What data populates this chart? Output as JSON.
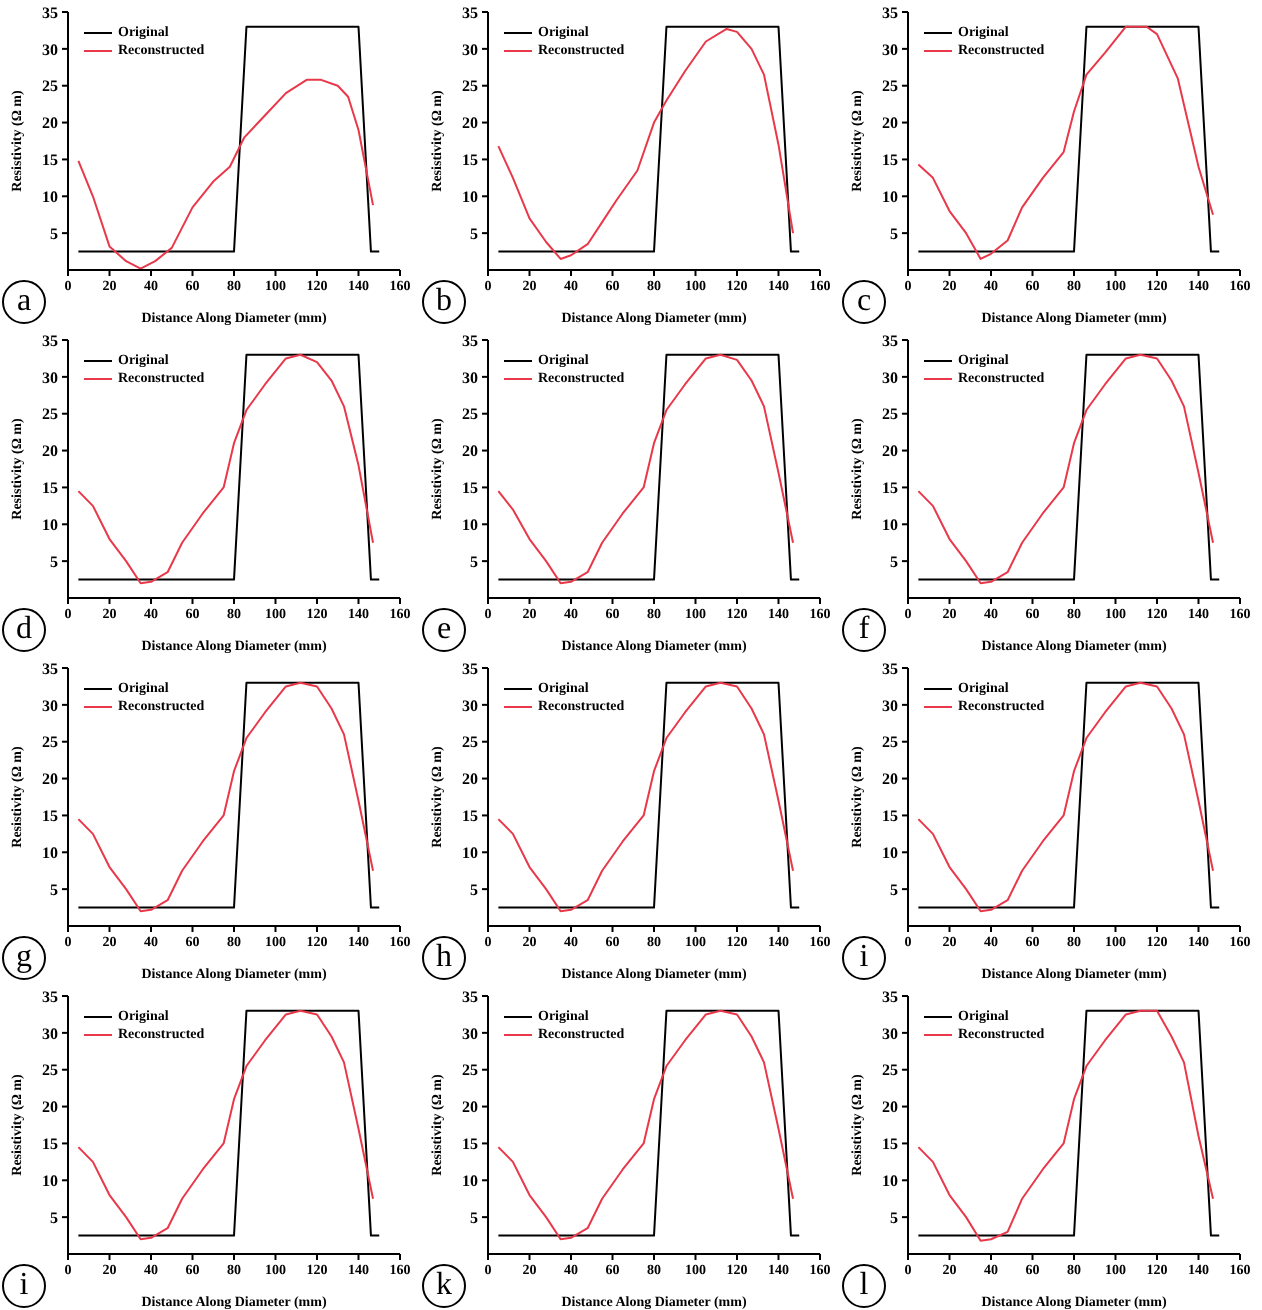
{
  "chart_data": [
    {
      "type": "line",
      "xlabel": "Distance Along Diameter (mm)",
      "ylabel": "Resistivity (Ω m)",
      "xlim": [
        0,
        160
      ],
      "ylim": [
        0,
        35
      ],
      "xticks": [
        0,
        20,
        40,
        60,
        80,
        100,
        120,
        140,
        160
      ],
      "yticks": [
        5,
        10,
        15,
        20,
        25,
        30,
        35
      ],
      "legend": "top left",
      "marker": "none",
      "line_style": "solid",
      "annotations": [
        "a"
      ],
      "series": [
        {
          "name": "Original",
          "color": "#000000",
          "x": [
            5,
            80,
            86,
            140,
            146,
            150
          ],
          "values": [
            2.5,
            2.5,
            33,
            33,
            2.5,
            2.5
          ]
        },
        {
          "name": "Reconstructed",
          "color": "#e8384a",
          "x": [
            5,
            12,
            20,
            28,
            35,
            42,
            50,
            60,
            70,
            78,
            85,
            95,
            105,
            115,
            122,
            130,
            135,
            140,
            147
          ],
          "values": [
            14.8,
            10,
            3.2,
            1.2,
            0.2,
            1.2,
            3,
            8.5,
            12,
            14,
            18,
            21,
            24,
            25.8,
            25.8,
            25,
            23.5,
            19,
            8.8
          ]
        }
      ]
    },
    {
      "type": "line",
      "xlabel": "Distance Along Diameter (mm)",
      "ylabel": "Resistivity (Ω m)",
      "xlim": [
        0,
        160
      ],
      "ylim": [
        0,
        35
      ],
      "xticks": [
        0,
        20,
        40,
        60,
        80,
        100,
        120,
        140,
        160
      ],
      "yticks": [
        5,
        10,
        15,
        20,
        25,
        30,
        35
      ],
      "legend": "top left",
      "marker": "none",
      "line_style": "solid",
      "annotations": [
        "b"
      ],
      "series": [
        {
          "name": "Original",
          "color": "#000000",
          "x": [
            5,
            80,
            86,
            140,
            146,
            150
          ],
          "values": [
            2.5,
            2.5,
            33,
            33,
            2.5,
            2.5
          ]
        },
        {
          "name": "Reconstructed",
          "color": "#e8384a",
          "x": [
            5,
            12,
            20,
            28,
            35,
            40,
            48,
            55,
            62,
            72,
            80,
            86,
            95,
            105,
            115,
            120,
            127,
            133,
            140,
            147
          ],
          "values": [
            16.8,
            12.5,
            7,
            3.8,
            1.5,
            2,
            3.5,
            6.5,
            9.5,
            13.5,
            20,
            23,
            27,
            31,
            32.7,
            32.3,
            30,
            26.5,
            17,
            5
          ]
        }
      ]
    },
    {
      "type": "line",
      "xlabel": "Distance Along Diameter (mm)",
      "ylabel": "Resistivity (Ω m)",
      "xlim": [
        0,
        160
      ],
      "ylim": [
        0,
        35
      ],
      "xticks": [
        0,
        20,
        40,
        60,
        80,
        100,
        120,
        140,
        160
      ],
      "yticks": [
        5,
        10,
        15,
        20,
        25,
        30,
        35
      ],
      "legend": "top left",
      "marker": "none",
      "line_style": "solid",
      "annotations": [
        "c"
      ],
      "series": [
        {
          "name": "Original",
          "color": "#000000",
          "x": [
            5,
            80,
            86,
            140,
            146,
            150
          ],
          "values": [
            2.5,
            2.5,
            33,
            33,
            2.5,
            2.5
          ]
        },
        {
          "name": "Reconstructed",
          "color": "#e8384a",
          "x": [
            5,
            12,
            20,
            28,
            35,
            40,
            48,
            55,
            65,
            75,
            80,
            86,
            95,
            105,
            115,
            120,
            130,
            140,
            147
          ],
          "values": [
            14.3,
            12.5,
            8,
            5,
            1.5,
            2.2,
            4,
            8.5,
            12.5,
            16,
            21.5,
            26.5,
            29.5,
            33,
            33,
            32,
            26,
            14,
            7.5
          ]
        }
      ]
    },
    {
      "type": "line",
      "xlabel": "Distance Along Diameter (mm)",
      "ylabel": "Resistivity (Ω m)",
      "xlim": [
        0,
        160
      ],
      "ylim": [
        0,
        35
      ],
      "xticks": [
        0,
        20,
        40,
        60,
        80,
        100,
        120,
        140,
        160
      ],
      "yticks": [
        5,
        10,
        15,
        20,
        25,
        30,
        35
      ],
      "legend": "top left",
      "marker": "none",
      "line_style": "solid",
      "annotations": [
        "d"
      ],
      "series": [
        {
          "name": "Original",
          "color": "#000000",
          "x": [
            5,
            80,
            86,
            140,
            146,
            150
          ],
          "values": [
            2.5,
            2.5,
            33,
            33,
            2.5,
            2.5
          ]
        },
        {
          "name": "Reconstructed",
          "color": "#e8384a",
          "x": [
            5,
            12,
            20,
            28,
            35,
            40,
            48,
            55,
            65,
            75,
            80,
            86,
            95,
            105,
            112,
            120,
            127,
            133,
            140,
            147
          ],
          "values": [
            14.5,
            12.5,
            8,
            5,
            2,
            2.2,
            3.5,
            7.5,
            11.5,
            15,
            21,
            25.5,
            29,
            32.5,
            33,
            32,
            29.5,
            26,
            18,
            7.5
          ]
        }
      ]
    },
    {
      "type": "line",
      "xlabel": "Distance Along Diameter (mm)",
      "ylabel": "Resistivity (Ω m)",
      "xlim": [
        0,
        160
      ],
      "ylim": [
        0,
        35
      ],
      "xticks": [
        0,
        20,
        40,
        60,
        80,
        100,
        120,
        140,
        160
      ],
      "yticks": [
        5,
        10,
        15,
        20,
        25,
        30,
        35
      ],
      "legend": "top left",
      "marker": "none",
      "line_style": "solid",
      "annotations": [
        "e"
      ],
      "series": [
        {
          "name": "Original",
          "color": "#000000",
          "x": [
            5,
            80,
            86,
            140,
            146,
            150
          ],
          "values": [
            2.5,
            2.5,
            33,
            33,
            2.5,
            2.5
          ]
        },
        {
          "name": "Reconstructed",
          "color": "#e8384a",
          "x": [
            5,
            12,
            20,
            28,
            35,
            40,
            48,
            55,
            65,
            75,
            80,
            86,
            95,
            105,
            112,
            120,
            127,
            133,
            140,
            147
          ],
          "values": [
            14.5,
            12,
            8,
            5,
            2,
            2.2,
            3.5,
            7.5,
            11.5,
            15,
            21,
            25.5,
            29,
            32.5,
            33,
            32.3,
            29.5,
            26,
            17,
            7.5
          ]
        }
      ]
    },
    {
      "type": "line",
      "xlabel": "Distance Along Diameter (mm)",
      "ylabel": "Resistivity (Ω m)",
      "xlim": [
        0,
        160
      ],
      "ylim": [
        0,
        35
      ],
      "xticks": [
        0,
        20,
        40,
        60,
        80,
        100,
        120,
        140,
        160
      ],
      "yticks": [
        5,
        10,
        15,
        20,
        25,
        30,
        35
      ],
      "legend": "top left",
      "marker": "none",
      "line_style": "solid",
      "annotations": [
        "f"
      ],
      "series": [
        {
          "name": "Original",
          "color": "#000000",
          "x": [
            5,
            80,
            86,
            140,
            146,
            150
          ],
          "values": [
            2.5,
            2.5,
            33,
            33,
            2.5,
            2.5
          ]
        },
        {
          "name": "Reconstructed",
          "color": "#e8384a",
          "x": [
            5,
            12,
            20,
            28,
            35,
            40,
            48,
            55,
            65,
            75,
            80,
            86,
            95,
            105,
            112,
            120,
            127,
            133,
            140,
            147
          ],
          "values": [
            14.5,
            12.5,
            8,
            5,
            2,
            2.2,
            3.5,
            7.5,
            11.5,
            15,
            21,
            25.5,
            29,
            32.5,
            33,
            32.5,
            29.5,
            26,
            17,
            7.5
          ]
        }
      ]
    },
    {
      "type": "line",
      "xlabel": "Distance Along Diameter (mm)",
      "ylabel": "Resistivity (Ω m)",
      "xlim": [
        0,
        160
      ],
      "ylim": [
        0,
        35
      ],
      "xticks": [
        0,
        20,
        40,
        60,
        80,
        100,
        120,
        140,
        160
      ],
      "yticks": [
        5,
        10,
        15,
        20,
        25,
        30,
        35
      ],
      "legend": "top left",
      "marker": "none",
      "line_style": "solid",
      "annotations": [
        "g"
      ],
      "series": [
        {
          "name": "Original",
          "color": "#000000",
          "x": [
            5,
            80,
            86,
            140,
            146,
            150
          ],
          "values": [
            2.5,
            2.5,
            33,
            33,
            2.5,
            2.5
          ]
        },
        {
          "name": "Reconstructed",
          "color": "#e8384a",
          "x": [
            5,
            12,
            20,
            28,
            35,
            40,
            48,
            55,
            65,
            75,
            80,
            86,
            95,
            105,
            112,
            120,
            127,
            133,
            140,
            147
          ],
          "values": [
            14.5,
            12.5,
            8,
            5,
            2,
            2.2,
            3.5,
            7.5,
            11.5,
            15,
            21,
            25.5,
            29,
            32.5,
            33,
            32.5,
            29.5,
            26,
            17,
            7.5
          ]
        }
      ]
    },
    {
      "type": "line",
      "xlabel": "Distance Along Diameter (mm)",
      "ylabel": "Resistivity (Ω m)",
      "xlim": [
        0,
        160
      ],
      "ylim": [
        0,
        35
      ],
      "xticks": [
        0,
        20,
        40,
        60,
        80,
        100,
        120,
        140,
        160
      ],
      "yticks": [
        5,
        10,
        15,
        20,
        25,
        30,
        35
      ],
      "legend": "top left",
      "marker": "none",
      "line_style": "solid",
      "annotations": [
        "h"
      ],
      "series": [
        {
          "name": "Original",
          "color": "#000000",
          "x": [
            5,
            80,
            86,
            140,
            146,
            150
          ],
          "values": [
            2.5,
            2.5,
            33,
            33,
            2.5,
            2.5
          ]
        },
        {
          "name": "Reconstructed",
          "color": "#e8384a",
          "x": [
            5,
            12,
            20,
            28,
            35,
            40,
            48,
            55,
            65,
            75,
            80,
            86,
            95,
            105,
            112,
            120,
            127,
            133,
            140,
            147
          ],
          "values": [
            14.5,
            12.5,
            8,
            5,
            2,
            2.2,
            3.5,
            7.5,
            11.5,
            15,
            21,
            25.5,
            29,
            32.5,
            33,
            32.5,
            29.5,
            26,
            17,
            7.5
          ]
        }
      ]
    },
    {
      "type": "line",
      "xlabel": "Distance Along Diameter (mm)",
      "ylabel": "Resistivity (Ω m)",
      "xlim": [
        0,
        160
      ],
      "ylim": [
        0,
        35
      ],
      "xticks": [
        0,
        20,
        40,
        60,
        80,
        100,
        120,
        140,
        160
      ],
      "yticks": [
        5,
        10,
        15,
        20,
        25,
        30,
        35
      ],
      "legend": "top left",
      "marker": "none",
      "line_style": "solid",
      "annotations": [
        "i"
      ],
      "series": [
        {
          "name": "Original",
          "color": "#000000",
          "x": [
            5,
            80,
            86,
            140,
            146,
            150
          ],
          "values": [
            2.5,
            2.5,
            33,
            33,
            2.5,
            2.5
          ]
        },
        {
          "name": "Reconstructed",
          "color": "#e8384a",
          "x": [
            5,
            12,
            20,
            28,
            35,
            40,
            48,
            55,
            65,
            75,
            80,
            86,
            95,
            105,
            112,
            120,
            127,
            133,
            140,
            147
          ],
          "values": [
            14.5,
            12.5,
            8,
            5,
            2,
            2.2,
            3.5,
            7.5,
            11.5,
            15,
            21,
            25.5,
            29,
            32.5,
            33,
            32.5,
            29.5,
            26,
            17,
            7.5
          ]
        }
      ]
    },
    {
      "type": "line",
      "xlabel": "Distance Along Diameter (mm)",
      "ylabel": "Resistivity (Ω m)",
      "xlim": [
        0,
        160
      ],
      "ylim": [
        0,
        35
      ],
      "xticks": [
        0,
        20,
        40,
        60,
        80,
        100,
        120,
        140,
        160
      ],
      "yticks": [
        5,
        10,
        15,
        20,
        25,
        30,
        35
      ],
      "legend": "top left",
      "marker": "none",
      "line_style": "solid",
      "annotations": [
        "i"
      ],
      "series": [
        {
          "name": "Original",
          "color": "#000000",
          "x": [
            5,
            80,
            86,
            140,
            146,
            150
          ],
          "values": [
            2.5,
            2.5,
            33,
            33,
            2.5,
            2.5
          ]
        },
        {
          "name": "Reconstructed",
          "color": "#e8384a",
          "x": [
            5,
            12,
            20,
            28,
            35,
            40,
            48,
            55,
            65,
            75,
            80,
            86,
            95,
            105,
            112,
            120,
            127,
            133,
            140,
            147
          ],
          "values": [
            14.5,
            12.5,
            8,
            5,
            2,
            2.2,
            3.5,
            7.5,
            11.5,
            15,
            21,
            25.5,
            29,
            32.5,
            33,
            32.5,
            29.5,
            26,
            17,
            7.5
          ]
        }
      ]
    },
    {
      "type": "line",
      "xlabel": "Distance Along Diameter (mm)",
      "ylabel": "Resistivity (Ω m)",
      "xlim": [
        0,
        160
      ],
      "ylim": [
        0,
        35
      ],
      "xticks": [
        0,
        20,
        40,
        60,
        80,
        100,
        120,
        140,
        160
      ],
      "yticks": [
        5,
        10,
        15,
        20,
        25,
        30,
        35
      ],
      "legend": "top left",
      "marker": "none",
      "line_style": "solid",
      "annotations": [
        "k"
      ],
      "series": [
        {
          "name": "Original",
          "color": "#000000",
          "x": [
            5,
            80,
            86,
            140,
            146,
            150
          ],
          "values": [
            2.5,
            2.5,
            33,
            33,
            2.5,
            2.5
          ]
        },
        {
          "name": "Reconstructed",
          "color": "#e8384a",
          "x": [
            5,
            12,
            20,
            28,
            35,
            40,
            48,
            55,
            65,
            75,
            80,
            86,
            95,
            105,
            112,
            120,
            127,
            133,
            140,
            147
          ],
          "values": [
            14.5,
            12.5,
            8,
            5,
            2,
            2.2,
            3.5,
            7.5,
            11.5,
            15,
            21,
            25.5,
            29,
            32.5,
            33,
            32.5,
            29.5,
            26,
            17,
            7.5
          ]
        }
      ]
    },
    {
      "type": "line",
      "xlabel": "Distance Along Diameter (mm)",
      "ylabel": "Resistivity (Ω m)",
      "xlim": [
        0,
        160
      ],
      "ylim": [
        0,
        35
      ],
      "xticks": [
        0,
        20,
        40,
        60,
        80,
        100,
        120,
        140,
        160
      ],
      "yticks": [
        5,
        10,
        15,
        20,
        25,
        30,
        35
      ],
      "legend": "top left",
      "marker": "none",
      "line_style": "solid",
      "annotations": [
        "l"
      ],
      "series": [
        {
          "name": "Original",
          "color": "#000000",
          "x": [
            5,
            80,
            86,
            140,
            146,
            150
          ],
          "values": [
            2.5,
            2.5,
            33,
            33,
            2.5,
            2.5
          ]
        },
        {
          "name": "Reconstructed",
          "color": "#e8384a",
          "x": [
            5,
            12,
            20,
            28,
            35,
            40,
            48,
            55,
            65,
            75,
            80,
            86,
            95,
            105,
            112,
            120,
            127,
            133,
            140,
            147
          ],
          "values": [
            14.5,
            12.5,
            8,
            5,
            1.8,
            2,
            3,
            7.5,
            11.5,
            15,
            21,
            25.5,
            29,
            32.5,
            33,
            33,
            29.5,
            26,
            16,
            7.5
          ]
        }
      ]
    }
  ]
}
